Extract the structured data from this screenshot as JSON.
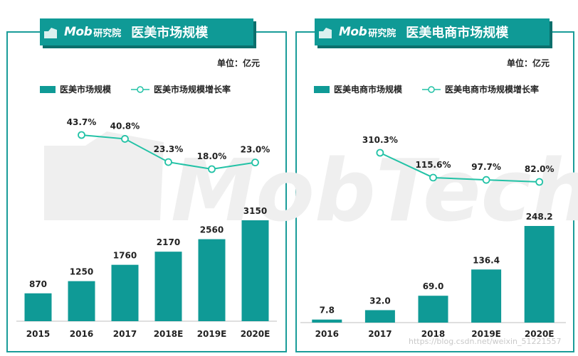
{
  "left_panel": {
    "logo_text": "Mob",
    "logo_sub": "研究院",
    "title": "医美市场规模",
    "unit": "单位：亿元",
    "legend_bar": "医美市场规模",
    "legend_line": "医美市场规模增长率"
  },
  "right_panel": {
    "logo_text": "Mob",
    "logo_sub": "研究院",
    "title": "医美电商市场规模",
    "unit": "单位：亿元",
    "legend_bar": "医美电商市场规模",
    "legend_line": "医美电商市场规模增长率"
  },
  "watermark": "MobTech",
  "footer_url": "https://blog.csdn.net/weixin_51221557",
  "colors": {
    "teal": "#0f9a96",
    "line": "#22c2a6",
    "border": "#1a9c99"
  },
  "chart_data": [
    {
      "type": "bar",
      "categories": [
        "2015",
        "2016",
        "2017",
        "2018E",
        "2019E",
        "2020E"
      ],
      "series": [
        {
          "values": [
            870,
            1250,
            1760,
            2170,
            2560,
            3150
          ]
        },
        {
          "type": "line",
          "values": [
            null,
            43.7,
            40.8,
            23.3,
            18.0,
            23.0
          ]
        }
      ],
      "bar_labels": [
        "870",
        "1250",
        "1760",
        "2170",
        "2560",
        "3150"
      ],
      "line_labels": [
        "",
        "43.7%",
        "40.8%",
        "23.3%",
        "18.0%",
        "23.0%"
      ],
      "legend": "top-left"
    },
    {
      "type": "bar",
      "categories": [
        "2016",
        "2017",
        "2018",
        "2019E",
        "2020E"
      ],
      "series": [
        {
          "values": [
            7.8,
            32.0,
            69.0,
            136.4,
            248.2
          ]
        },
        {
          "type": "line",
          "values": [
            null,
            310.3,
            115.6,
            97.7,
            82.0
          ]
        }
      ],
      "bar_labels": [
        "7.8",
        "32.0",
        "69.0",
        "136.4",
        "248.2"
      ],
      "line_labels": [
        "",
        "310.3%",
        "115.6%",
        "97.7%",
        "82.0%"
      ],
      "legend": "top-left"
    }
  ]
}
